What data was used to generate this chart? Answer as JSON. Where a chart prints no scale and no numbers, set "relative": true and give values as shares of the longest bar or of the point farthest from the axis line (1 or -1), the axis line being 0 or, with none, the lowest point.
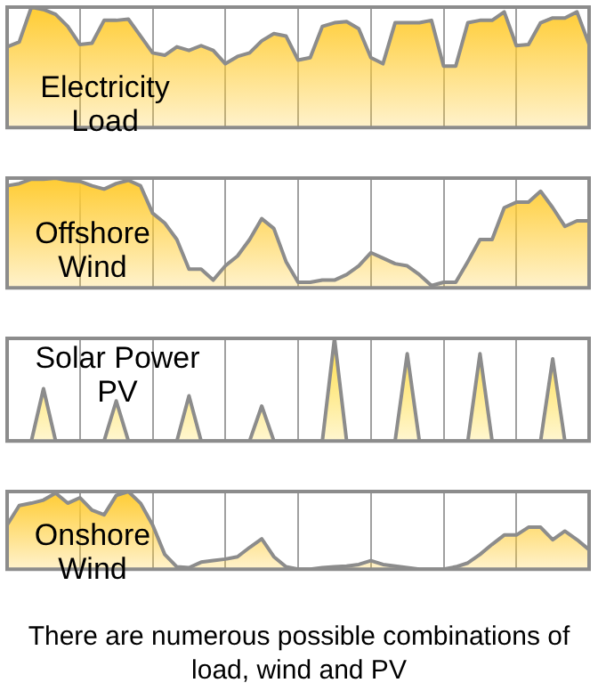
{
  "chart_data": [
    {
      "type": "area",
      "title": "Electricity\nLoad",
      "relative": true,
      "grid": "x",
      "categories": [
        null,
        null,
        null,
        null,
        null,
        null,
        null,
        null,
        null,
        null,
        null,
        null,
        null,
        null,
        null,
        null,
        null,
        null,
        null,
        null,
        null,
        null,
        null,
        null,
        null,
        null,
        null,
        null,
        null,
        null,
        null,
        null,
        null,
        null,
        null,
        null,
        null,
        null,
        null,
        null,
        null,
        null,
        null,
        null,
        null,
        null,
        null,
        null,
        null
      ],
      "series": [
        {
          "color": "#ffcc33",
          "values": [
            0.67,
            0.71,
            1.0,
            0.98,
            0.94,
            0.84,
            0.69,
            0.7,
            0.89,
            0.89,
            0.9,
            0.76,
            0.62,
            0.6,
            0.67,
            0.64,
            0.68,
            0.64,
            0.53,
            0.59,
            0.62,
            0.72,
            0.78,
            0.76,
            0.56,
            0.58,
            0.84,
            0.87,
            0.88,
            0.82,
            0.58,
            0.53,
            0.87,
            0.87,
            0.87,
            0.89,
            0.51,
            0.51,
            0.87,
            0.89,
            0.89,
            0.96,
            0.68,
            0.69,
            0.87,
            0.91,
            0.91,
            0.96,
            0.69
          ]
        }
      ]
    },
    {
      "type": "area",
      "title": "Offshore\nWind",
      "relative": true,
      "grid": "x",
      "categories": [
        null,
        null,
        null,
        null,
        null,
        null,
        null,
        null,
        null,
        null,
        null,
        null,
        null,
        null,
        null,
        null,
        null,
        null,
        null,
        null,
        null,
        null,
        null,
        null,
        null,
        null,
        null,
        null,
        null,
        null,
        null,
        null,
        null,
        null,
        null,
        null,
        null,
        null,
        null,
        null,
        null,
        null,
        null,
        null,
        null,
        null,
        null,
        null,
        null
      ],
      "series": [
        {
          "color": "#ffcc33",
          "values": [
            0.93,
            0.95,
            0.99,
            0.99,
            1,
            0.98,
            0.97,
            0.93,
            0.9,
            0.95,
            0.98,
            0.93,
            0.68,
            0.59,
            0.44,
            0.17,
            0.17,
            0.07,
            0.2,
            0.29,
            0.44,
            0.63,
            0.54,
            0.24,
            0.05,
            0.05,
            0.07,
            0.07,
            0.12,
            0.2,
            0.32,
            0.27,
            0.22,
            0.2,
            0.12,
            0.02,
            0.05,
            0.05,
            0.24,
            0.44,
            0.44,
            0.73,
            0.78,
            0.78,
            0.88,
            0.73,
            0.56,
            0.61,
            0.61
          ]
        }
      ]
    },
    {
      "type": "area",
      "title": "Solar Power\nPV",
      "relative": true,
      "grid": "x",
      "categories": [
        null,
        null,
        null,
        null,
        null,
        null,
        null,
        null,
        null,
        null,
        null,
        null,
        null,
        null,
        null,
        null,
        null,
        null,
        null,
        null,
        null,
        null,
        null,
        null,
        null,
        null,
        null,
        null,
        null,
        null,
        null,
        null,
        null,
        null,
        null,
        null,
        null,
        null,
        null,
        null,
        null,
        null,
        null,
        null,
        null,
        null,
        null,
        null,
        null
      ],
      "series": [
        {
          "color": "#ffdd44",
          "values": [
            0,
            0,
            0,
            0.51,
            0,
            0,
            0,
            0,
            0,
            0.39,
            0,
            0,
            0,
            0,
            0,
            0.44,
            0,
            0,
            0,
            0,
            0,
            0.34,
            0,
            0,
            0,
            0,
            0,
            1,
            0,
            0,
            0,
            0,
            0,
            0.85,
            0,
            0,
            0,
            0,
            0,
            0.85,
            0,
            0,
            0,
            0,
            0,
            0.8,
            0,
            0,
            0
          ]
        }
      ]
    },
    {
      "type": "area",
      "title": "Onshore\nWind",
      "relative": true,
      "grid": "x",
      "annotations": [
        "There are numerous possible combinations of load, wind and PV"
      ],
      "categories": [
        null,
        null,
        null,
        null,
        null,
        null,
        null,
        null,
        null,
        null,
        null,
        null,
        null,
        null,
        null,
        null,
        null,
        null,
        null,
        null,
        null,
        null,
        null,
        null,
        null,
        null,
        null,
        null,
        null,
        null,
        null,
        null,
        null,
        null,
        null,
        null,
        null,
        null,
        null,
        null,
        null,
        null,
        null,
        null,
        null,
        null,
        null,
        null,
        null
      ],
      "series": [
        {
          "color": "#ffcc33",
          "values": [
            0.57,
            0.82,
            0.85,
            0.89,
            0.98,
            0.85,
            0.92,
            0.76,
            0.7,
            0.95,
            1.0,
            0.85,
            0.57,
            0.19,
            0.03,
            0.02,
            0.09,
            0.11,
            0.13,
            0.16,
            0.28,
            0.39,
            0.16,
            0.03,
            0,
            0,
            0.02,
            0.03,
            0.04,
            0.06,
            0.11,
            0.06,
            0.04,
            0.02,
            0,
            0,
            0,
            0.03,
            0.08,
            0.19,
            0.32,
            0.44,
            0.44,
            0.54,
            0.54,
            0.38,
            0.49,
            0.38,
            0.25
          ]
        }
      ]
    }
  ]
}
